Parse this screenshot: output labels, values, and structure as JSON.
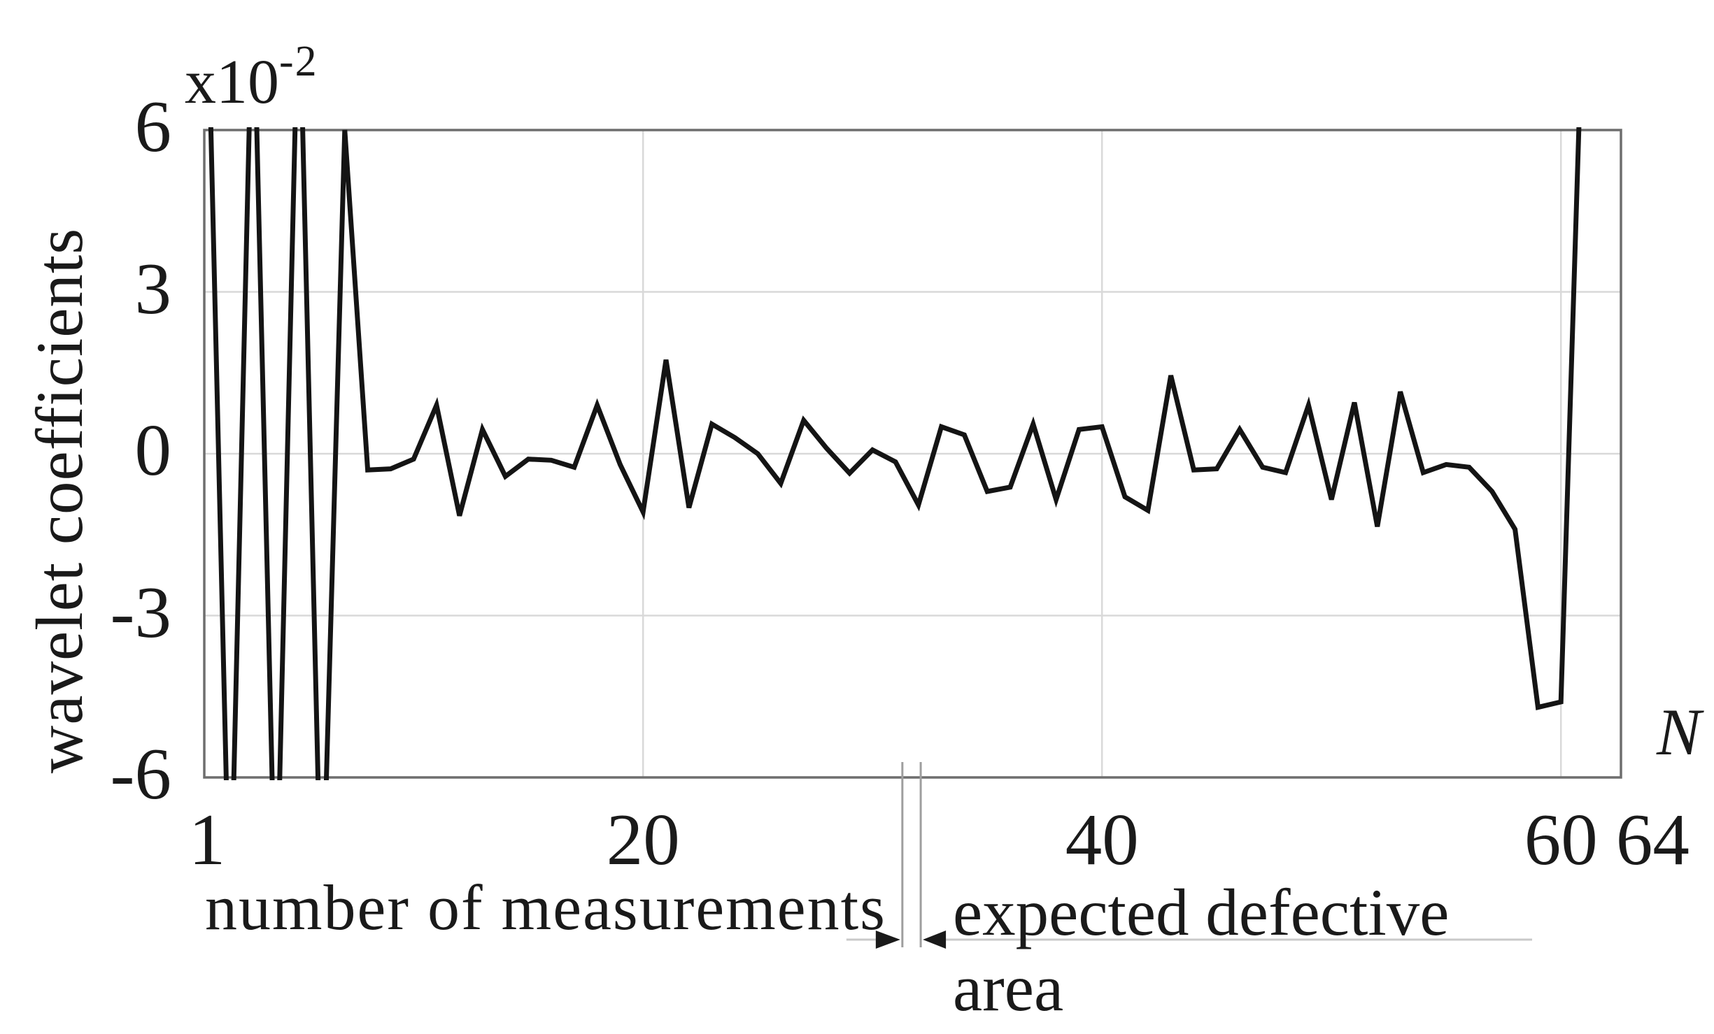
{
  "chart_data": {
    "type": "line",
    "title": "",
    "ylabel": "wavelet coefficients",
    "xlabel": "number of measurements",
    "y_multiplier_base": "x10",
    "y_multiplier_exponent": "-2",
    "x_end_label": "N",
    "y_unit": "1e-2",
    "xlim": [
      1,
      64
    ],
    "ylim": [
      -6,
      6
    ],
    "grid": true,
    "legend_position": "none",
    "n_points": 64,
    "x": [
      1,
      2,
      3,
      4,
      5,
      6,
      7,
      8,
      9,
      10,
      11,
      12,
      13,
      14,
      15,
      16,
      17,
      18,
      19,
      20,
      21,
      22,
      23,
      24,
      25,
      26,
      27,
      28,
      29,
      30,
      31,
      32,
      33,
      34,
      35,
      36,
      37,
      38,
      39,
      40,
      41,
      42,
      43,
      44,
      45,
      46,
      47,
      48,
      49,
      50,
      51,
      52,
      53,
      54,
      55,
      56,
      57,
      58,
      59,
      60,
      61,
      62,
      63,
      64
    ],
    "values": [
      9,
      -9,
      9,
      -9,
      9,
      -9,
      6,
      -0.3,
      -0.28,
      -0.1,
      0.9,
      -1.15,
      0.45,
      -0.42,
      -0.1,
      -0.12,
      -0.25,
      0.9,
      -0.2,
      -1.08,
      1.74,
      -1.0,
      0.55,
      0.3,
      0.0,
      -0.55,
      0.62,
      0.1,
      -0.36,
      0.07,
      -0.15,
      -0.95,
      0.5,
      0.35,
      -0.7,
      -0.62,
      0.55,
      -0.85,
      0.45,
      0.5,
      -0.8,
      -1.05,
      1.45,
      -0.3,
      -0.28,
      0.45,
      -0.25,
      -0.35,
      0.9,
      -0.85,
      0.95,
      -1.35,
      1.15,
      -0.35,
      -0.2,
      -0.25,
      -0.7,
      -1.4,
      -4.7,
      -4.6,
      9,
      9,
      9,
      9
    ],
    "x_ticks": [
      {
        "label": "1",
        "x": 1
      },
      {
        "label": "20",
        "x": 20
      },
      {
        "label": "40",
        "x": 40
      },
      {
        "label": "60",
        "x": 60
      },
      {
        "label": "64",
        "x": 64
      }
    ],
    "y_ticks": [
      {
        "label": "6",
        "y": 6
      },
      {
        "label": "3",
        "y": 3
      },
      {
        "label": "0",
        "y": 0
      },
      {
        "label": "-3",
        "y": -3
      },
      {
        "label": "-6",
        "y": -6
      }
    ],
    "x_gridlines": [
      20,
      40,
      60
    ],
    "y_gridlines": [
      3,
      0,
      -3
    ],
    "annotation": {
      "line1": "expected defective",
      "line2": "area",
      "x_start": 31.3,
      "x_end": 32.1
    }
  },
  "colors": {
    "line": "#141414",
    "grid": "#d9d9d9",
    "border": "#6e6e6e",
    "marker_line": "#9e9e9e",
    "leader_line": "#c9c9c9",
    "arrow": "#1a1a1a",
    "text": "#1a1a1a"
  }
}
